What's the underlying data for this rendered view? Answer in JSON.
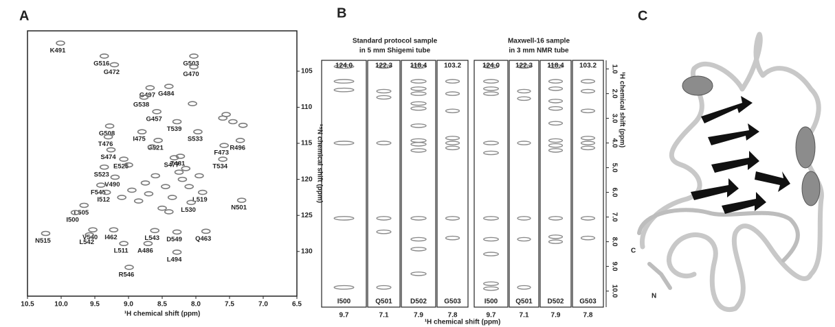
{
  "panel_labels": [
    "A",
    "B",
    "C"
  ],
  "chart_data": [
    {
      "type": "scatter",
      "xlabel": "¹H chemical shift (ppm)",
      "ylabel": "¹⁵N chemical shift (ppm)",
      "color": "#7a7a7a",
      "x": [
        10.01,
        9.36,
        8.03,
        9.21,
        8.03,
        8.68,
        8.4,
        8.77,
        8.58,
        9.28,
        9.3,
        8.8,
        8.28,
        7.97,
        8.56,
        9.26,
        7.58,
        7.34,
        9.07,
        8.23,
        8.32,
        7.6,
        9.36,
        9.2,
        9.41,
        9.33,
        7.9,
        8.07,
        7.32,
        9.66,
        9.79,
        10.23,
        9.53,
        9.58,
        9.22,
        8.61,
        8.28,
        7.85,
        9.07,
        8.71,
        8.28,
        8.99,
        7.6,
        7.45,
        7.3,
        7.55,
        8.2,
        8.45,
        8.7,
        8.95,
        8.6,
        8.35,
        8.1,
        8.85,
        8.5,
        8.25,
        9.0,
        8.65,
        8.15,
        7.95,
        8.4,
        9.1,
        8.05,
        8.75
      ],
      "y": [
        101.1,
        102.9,
        102.9,
        104.1,
        104.4,
        107.3,
        107.1,
        108.6,
        110.6,
        112.6,
        114.1,
        113.4,
        112.0,
        113.4,
        114.6,
        115.9,
        115.3,
        114.6,
        117.2,
        116.8,
        117.0,
        117.2,
        118.3,
        119.7,
        120.8,
        121.8,
        121.8,
        123.2,
        122.9,
        123.6,
        124.6,
        127.5,
        127.0,
        127.7,
        127.0,
        127.1,
        127.3,
        127.2,
        128.9,
        128.9,
        130.1,
        132.2,
        111.5,
        112.0,
        112.5,
        111.0,
        120.0,
        121.0,
        122.0,
        121.5,
        119.5,
        122.5,
        121.0,
        123.0,
        124.0,
        119.0,
        118.0,
        115.5,
        118.5,
        119.5,
        124.5,
        122.5,
        109.5,
        120.5
      ],
      "labels": [
        "K491",
        "G516",
        "G503",
        "G472",
        "G470",
        "G497",
        "G484",
        "G538",
        "G457",
        "G508",
        "T476",
        "I475",
        "T539",
        "S533",
        "G521",
        "S474",
        "F473",
        "R496",
        "E525",
        "T481",
        "S477",
        "T534",
        "S523",
        "V490",
        "F545",
        "I512",
        "L519",
        "L530",
        "N501",
        "L505",
        "I500",
        "N515",
        "V540",
        "L542",
        "I462",
        "L543",
        "D549",
        "Q463",
        "L511",
        "A486",
        "L494",
        "R546",
        null,
        null,
        null,
        null,
        null,
        null,
        null,
        null,
        null,
        null,
        null,
        null,
        null,
        null,
        null,
        null,
        null,
        null,
        null,
        null,
        null,
        null
      ],
      "xlim": [
        10.5,
        6.5
      ],
      "ylim": [
        136.2,
        99.4
      ],
      "xticks": [
        {
          "value": 10.5,
          "label": "10.5"
        },
        {
          "value": 10,
          "label": "10.0"
        },
        9.5,
        {
          "value": 9,
          "label": "9.0"
        },
        8.5,
        {
          "value": 8,
          "label": "8.0"
        },
        7.5,
        {
          "value": 7,
          "label": "7.0"
        },
        6.5
      ],
      "yticks": [
        105,
        110,
        115,
        120,
        125,
        130
      ]
    },
    {
      "type": "strips",
      "xlabel": "¹H chemical shift (ppm)",
      "ylabel": "¹H chemical shift (ppm)",
      "color": "#8a8a8a",
      "ylim": [
        10.65,
        0.65
      ],
      "yticks": [
        {
          "value": 1,
          "label": "1.0"
        },
        {
          "value": 2,
          "label": "2.0"
        },
        {
          "value": 3,
          "label": "3.0"
        },
        {
          "value": 4,
          "label": "4.0"
        },
        {
          "value": 5,
          "label": "5.0"
        },
        {
          "value": 6,
          "label": "6.0"
        },
        {
          "value": 7,
          "label": "7.0"
        },
        {
          "value": 8,
          "label": "8.0"
        },
        {
          "value": 9,
          "label": "9.0"
        },
        {
          "value": 10,
          "label": "10.0"
        }
      ],
      "groups": [
        {
          "title": [
            "Standard protocol sample",
            "in 5 mm Shigemi tube"
          ],
          "strips": [
            {
              "n15": "124.0",
              "residue": "I500",
              "h1": "9.7",
              "peaks": [
                0.9,
                1.5,
                1.85,
                4.0,
                7.05,
                9.85
              ]
            },
            {
              "n15": "122.3",
              "residue": "Q501",
              "h1": "7.1",
              "peaks": [
                0.9,
                1.9,
                2.15,
                4.0,
                7.05,
                7.6,
                9.85
              ]
            },
            {
              "n15": "118.4",
              "residue": "D502",
              "h1": "7.9",
              "peaks": [
                0.9,
                1.5,
                1.8,
                2.0,
                2.4,
                2.6,
                3.3,
                3.9,
                4.05,
                4.3,
                7.05,
                7.9,
                8.3,
                9.3
              ]
            },
            {
              "n15": "103.2",
              "residue": "G503",
              "h1": "7.8",
              "peaks": [
                1.5,
                2.0,
                2.7,
                3.8,
                4.0,
                4.2,
                7.05,
                7.85
              ]
            }
          ]
        },
        {
          "title": [
            "Maxwell-16 sample",
            "in 3 mm NMR tube"
          ],
          "strips": [
            {
              "n15": "124.0",
              "residue": "I500",
              "h1": "9.7",
              "peaks": [
                0.9,
                1.5,
                1.8,
                2.0,
                4.0,
                4.4,
                7.05,
                7.9,
                8.5,
                9.7,
                9.9
              ]
            },
            {
              "n15": "122.3",
              "residue": "Q501",
              "h1": "7.1",
              "peaks": [
                0.9,
                1.9,
                2.2,
                4.0,
                7.05,
                7.9,
                9.85
              ]
            },
            {
              "n15": "118.4",
              "residue": "D502",
              "h1": "7.9",
              "peaks": [
                0.9,
                1.5,
                1.8,
                2.3,
                2.6,
                3.2,
                3.9,
                4.1,
                4.3,
                7.05,
                7.8,
                8.0
              ]
            },
            {
              "n15": "103.2",
              "residue": "G503",
              "h1": "7.8",
              "peaks": [
                1.5,
                1.9,
                2.7,
                3.8,
                4.0,
                4.2,
                7.05,
                7.85
              ]
            }
          ]
        }
      ]
    }
  ],
  "structure": {
    "terminus_labels": [
      "C",
      "N"
    ]
  }
}
